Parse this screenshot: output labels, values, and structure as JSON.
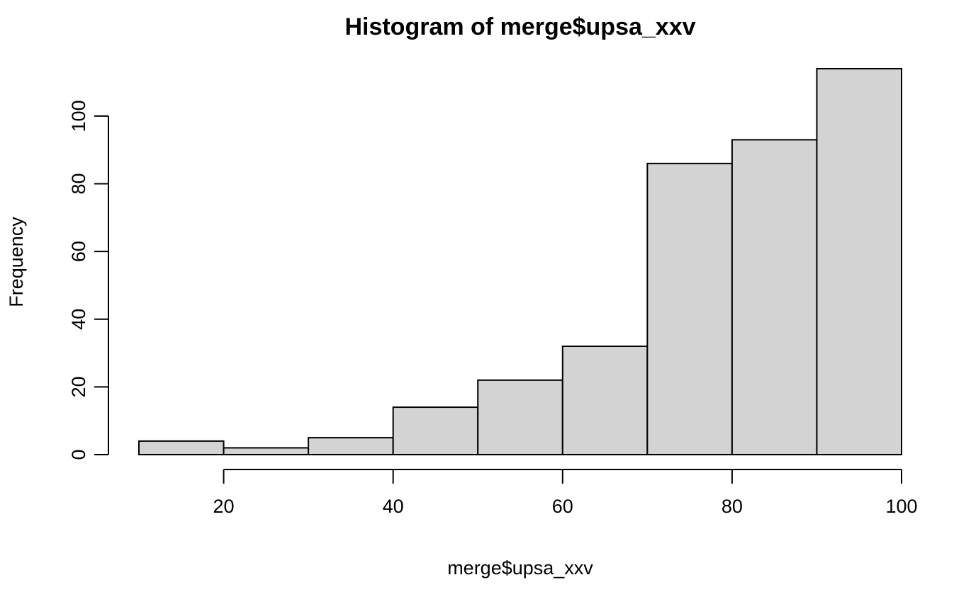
{
  "chart_data": {
    "type": "bar",
    "title": "Histogram of merge$upsa_xxv",
    "xlabel": "merge$upsa_xxv",
    "ylabel": "Frequency",
    "bins": [
      {
        "from": 10,
        "to": 20,
        "count": 4
      },
      {
        "from": 20,
        "to": 30,
        "count": 2
      },
      {
        "from": 30,
        "to": 40,
        "count": 5
      },
      {
        "from": 40,
        "to": 50,
        "count": 14
      },
      {
        "from": 50,
        "to": 60,
        "count": 22
      },
      {
        "from": 60,
        "to": 70,
        "count": 32
      },
      {
        "from": 70,
        "to": 80,
        "count": 86
      },
      {
        "from": 80,
        "to": 90,
        "count": 93
      },
      {
        "from": 90,
        "to": 100,
        "count": 114
      }
    ],
    "xlim": [
      10,
      100
    ],
    "ylim": [
      0,
      114
    ],
    "x_ticks": [
      20,
      40,
      60,
      80,
      100
    ],
    "y_ticks": [
      0,
      20,
      40,
      60,
      80,
      100
    ],
    "grid": false,
    "bar_color": "#d3d3d3",
    "edge_color": "#000000"
  }
}
